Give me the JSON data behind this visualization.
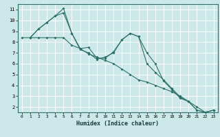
{
  "xlabel": "Humidex (Indice chaleur)",
  "bg_color": "#cce8e8",
  "grid_color": "#ffffff",
  "line_color": "#2d7068",
  "xlim": [
    -0.5,
    23.5
  ],
  "ylim": [
    1.5,
    11.5
  ],
  "xticks": [
    0,
    1,
    2,
    3,
    4,
    5,
    6,
    7,
    8,
    9,
    10,
    11,
    12,
    13,
    14,
    15,
    16,
    17,
    18,
    19,
    20,
    21,
    22,
    23
  ],
  "yticks": [
    2,
    3,
    4,
    5,
    6,
    7,
    8,
    9,
    10,
    11
  ],
  "series": [
    {
      "x": [
        1,
        2,
        3,
        4,
        5,
        6,
        7,
        8,
        9,
        10,
        11,
        12,
        13,
        14,
        15,
        16,
        17,
        18,
        19,
        20,
        21,
        22,
        23
      ],
      "y": [
        8.4,
        9.2,
        9.8,
        10.4,
        11.1,
        8.8,
        7.3,
        7.0,
        6.4,
        6.6,
        7.0,
        8.2,
        8.8,
        8.5,
        7.0,
        6.0,
        4.4,
        3.6,
        2.8,
        2.5,
        1.7,
        1.5,
        1.7
      ]
    },
    {
      "x": [
        1,
        2,
        3,
        4,
        5,
        6,
        7,
        8,
        9,
        10,
        11,
        12,
        13,
        14,
        15,
        16,
        17,
        18,
        19,
        20,
        21,
        22,
        23
      ],
      "y": [
        8.4,
        9.2,
        9.8,
        10.4,
        10.7,
        8.8,
        7.4,
        7.5,
        6.5,
        6.5,
        7.1,
        8.2,
        8.8,
        8.5,
        6.0,
        5.2,
        4.5,
        3.7,
        2.9,
        2.5,
        1.7,
        1.5,
        1.7
      ]
    },
    {
      "x": [
        0,
        1,
        2,
        3,
        4,
        5,
        6,
        7,
        8,
        9,
        10,
        11,
        12,
        13,
        14,
        15,
        16,
        17,
        18,
        19,
        20,
        21,
        22,
        23
      ],
      "y": [
        8.4,
        8.4,
        8.4,
        8.4,
        8.4,
        8.4,
        7.7,
        7.4,
        6.9,
        6.6,
        6.3,
        6.0,
        5.5,
        5.0,
        4.5,
        4.3,
        4.0,
        3.7,
        3.4,
        3.0,
        2.5,
        2.0,
        1.5,
        1.7
      ]
    }
  ]
}
